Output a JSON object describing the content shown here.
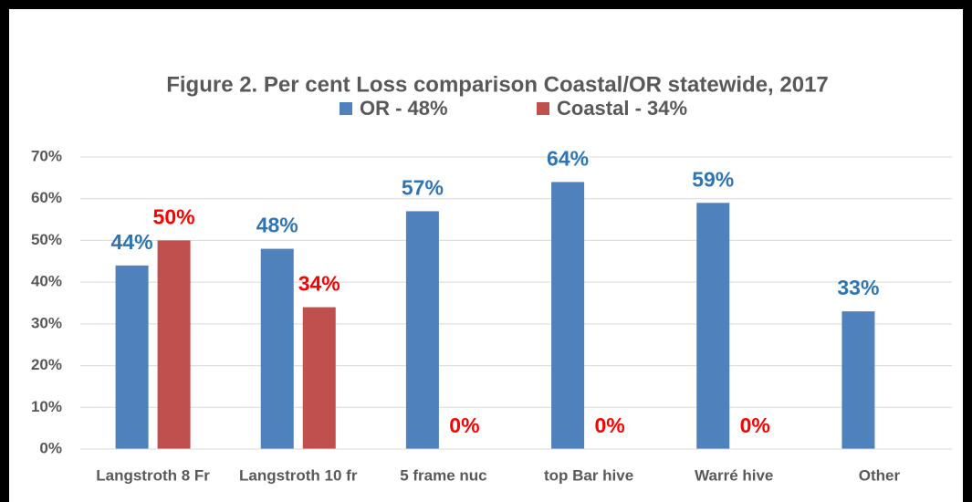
{
  "chart_data": {
    "type": "bar",
    "title": "Figure 2.  Per cent Loss comparison Coastal/OR statewide, 2017",
    "categories": [
      "Langstroth  8 Fr",
      "Langstroth 10 fr",
      "5 frame nuc",
      "top Bar hive",
      "Warré hive",
      "Other"
    ],
    "series": [
      {
        "name": "OR - 48%",
        "color": "#4f81bd",
        "label_color": "#2e75b6",
        "values": [
          44,
          48,
          57,
          64,
          59,
          33
        ],
        "value_labels": [
          "44%",
          "48%",
          "57%",
          "64%",
          "59%",
          "33%"
        ]
      },
      {
        "name": "Coastal - 34%",
        "color": "#c0504d",
        "label_color": "#ff0000",
        "values": [
          50,
          34,
          0,
          0,
          0,
          null
        ],
        "value_labels": [
          "50%",
          "34%",
          "0%",
          "0%",
          "0%",
          null
        ]
      }
    ],
    "ylim": [
      0,
      70
    ],
    "yticks": [
      {
        "value": 0,
        "label": "0%"
      },
      {
        "value": 10,
        "label": "10%"
      },
      {
        "value": 20,
        "label": "20%"
      },
      {
        "value": 30,
        "label": "30%"
      },
      {
        "value": 40,
        "label": "40%"
      },
      {
        "value": 50,
        "label": "50%"
      },
      {
        "value": 60,
        "label": "60%"
      },
      {
        "value": 70,
        "label": "70%"
      }
    ],
    "grid": true,
    "legend": "top"
  }
}
